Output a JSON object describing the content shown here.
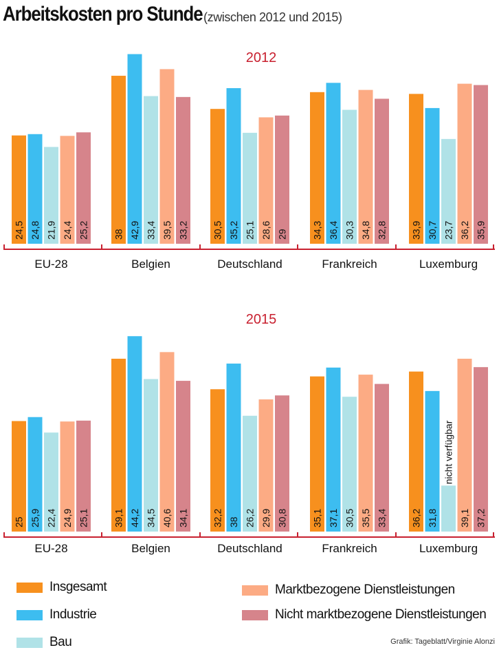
{
  "title": "Arbeitskosten pro Stunde",
  "subtitle": "(zwischen 2012 und 2015)",
  "credit": "Grafik: Tageblatt/Virginie Alonzi",
  "colors": {
    "Insgesamt": "#f7901e",
    "Industrie": "#3dbdf0",
    "Bau": "#b0e2e7",
    "Marktbezogene Dienstleistungen": "#fcab84",
    "Nicht marktbezogene Dienstleistungen": "#d6848b",
    "axis": "#c8202f",
    "year": "#c8202f"
  },
  "legend": [
    {
      "name": "Insgesamt",
      "color": "#f7901e"
    },
    {
      "name": "Industrie",
      "color": "#3dbdf0"
    },
    {
      "name": "Bau",
      "color": "#b0e2e7"
    },
    {
      "name": "Marktbezogene Dienstleistungen",
      "color": "#fcab84"
    },
    {
      "name": "Nicht marktbezogene Dienstleistungen",
      "color": "#d6848b"
    }
  ],
  "chart_data": [
    {
      "type": "bar",
      "title": "2012",
      "categories": [
        "EU-28",
        "Belgien",
        "Deutschland",
        "Frankreich",
        "Luxemburg"
      ],
      "series": [
        {
          "name": "Insgesamt",
          "values": [
            24.5,
            38,
            30.5,
            34.3,
            33.9
          ],
          "labels": [
            "24,5",
            "38",
            "30,5",
            "34,3",
            "33,9"
          ]
        },
        {
          "name": "Industrie",
          "values": [
            24.8,
            42.9,
            35.2,
            36.4,
            30.7
          ],
          "labels": [
            "24,8",
            "42,9",
            "35,2",
            "36,4",
            "30,7"
          ]
        },
        {
          "name": "Bau",
          "values": [
            21.9,
            33.4,
            25.1,
            30.3,
            23.7
          ],
          "labels": [
            "21,9",
            "33,4",
            "25,1",
            "30,3",
            "23,7"
          ]
        },
        {
          "name": "Marktbezogene Dienstleistungen",
          "values": [
            24.4,
            39.5,
            28.6,
            34.8,
            36.2
          ],
          "labels": [
            "24,4",
            "39,5",
            "28,6",
            "34,8",
            "36,2"
          ]
        },
        {
          "name": "Nicht marktbezogene Dienstleistungen",
          "values": [
            25.2,
            33.2,
            29,
            32.8,
            35.9
          ],
          "labels": [
            "25,2",
            "33,2",
            "29",
            "32,8",
            "35,9"
          ]
        }
      ],
      "xlabel": "",
      "ylabel": "",
      "ylim": [
        0,
        46
      ],
      "grid": false
    },
    {
      "type": "bar",
      "title": "2015",
      "categories": [
        "EU-28",
        "Belgien",
        "Deutschland",
        "Frankreich",
        "Luxemburg"
      ],
      "series": [
        {
          "name": "Insgesamt",
          "values": [
            25,
            39.1,
            32.2,
            35.1,
            36.2
          ],
          "labels": [
            "25",
            "39,1",
            "32,2",
            "35,1",
            "36,2"
          ]
        },
        {
          "name": "Industrie",
          "values": [
            25.9,
            44.2,
            38,
            37.1,
            31.8
          ],
          "labels": [
            "25,9",
            "44,2",
            "38",
            "37,1",
            "31,8"
          ]
        },
        {
          "name": "Bau",
          "values": [
            22.4,
            34.5,
            26.2,
            30.5,
            null
          ],
          "labels": [
            "22,4",
            "34,5",
            "26,2",
            "30,5",
            "nicht verfügbar"
          ]
        },
        {
          "name": "Marktbezogene Dienstleistungen",
          "values": [
            24.9,
            40.6,
            29.9,
            35.5,
            39.1
          ],
          "labels": [
            "24,9",
            "40,6",
            "29,9",
            "35,5",
            "39,1"
          ]
        },
        {
          "name": "Nicht marktbezogene Dienstleistungen",
          "values": [
            25.1,
            34.1,
            30.8,
            33.4,
            37.2
          ],
          "labels": [
            "25,1",
            "34,1",
            "30,8",
            "33,4",
            "37,2"
          ]
        }
      ],
      "xlabel": "",
      "ylabel": "",
      "ylim": [
        0,
        46
      ],
      "grid": false
    }
  ]
}
